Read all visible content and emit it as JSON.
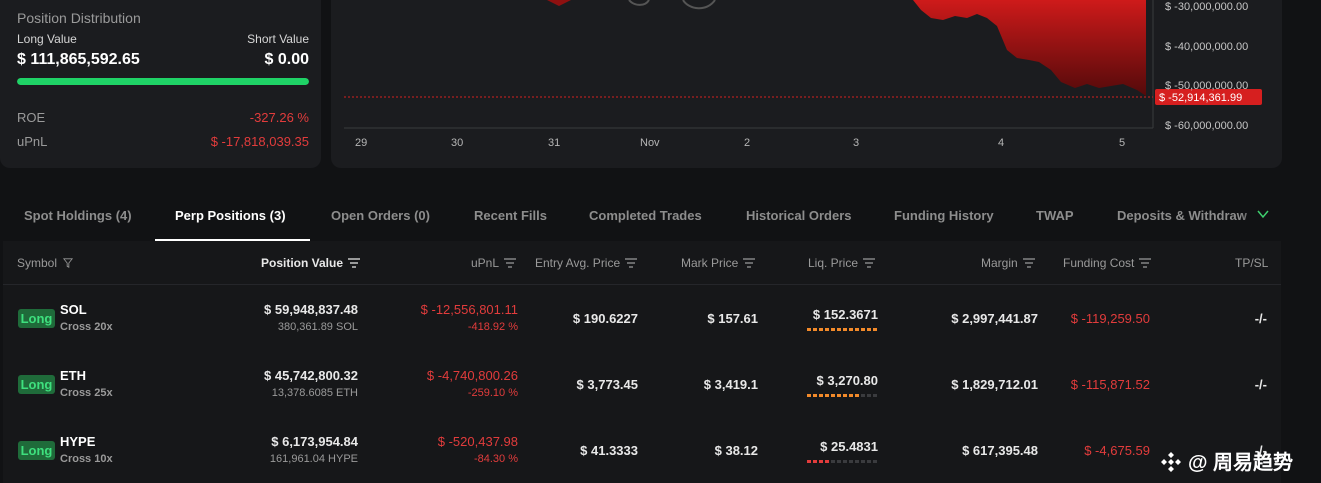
{
  "position_card": {
    "title": "Position Distribution",
    "long_label": "Long Value",
    "short_label": "Short Value",
    "long_value": "$ 111,865,592.65",
    "short_value": "$ 0.00",
    "long_fraction": 1.0,
    "roe_label": "ROE",
    "roe_value": "-327.26 %",
    "upnl_label": "uPnL",
    "upnl_value": "$ -17,818,039.35"
  },
  "chart": {
    "y_ticks": [
      "$ -30,000,000.00",
      "$ -40,000,000.00",
      "$ -50,000,000.00",
      "$ -60,000,000.00"
    ],
    "current_label": "$ -52,914,361.99",
    "x_ticks": [
      "29",
      "30",
      "31",
      "Nov",
      "2",
      "3",
      "4",
      "5"
    ],
    "colors": {
      "area": "#b01414",
      "marker": "#d61f1f"
    }
  },
  "tabs": [
    {
      "label": "Spot Holdings (4)",
      "active": false
    },
    {
      "label": "Perp Positions (3)",
      "active": true
    },
    {
      "label": "Open Orders (0)",
      "active": false
    },
    {
      "label": "Recent Fills",
      "active": false
    },
    {
      "label": "Completed Trades",
      "active": false
    },
    {
      "label": "Historical Orders",
      "active": false
    },
    {
      "label": "Funding History",
      "active": false
    },
    {
      "label": "TWAP",
      "active": false
    },
    {
      "label": "Deposits & Withdraw",
      "active": false
    }
  ],
  "table": {
    "headers": {
      "symbol": "Symbol",
      "position_value": "Position Value",
      "upnl": "uPnL",
      "entry": "Entry Avg. Price",
      "mark": "Mark Price",
      "liq": "Liq. Price",
      "margin": "Margin",
      "funding": "Funding Cost",
      "tpsl": "TP/SL"
    },
    "rows": [
      {
        "side": "Long",
        "symbol": "SOL",
        "cross": "Cross 20x",
        "position_value": "$ 59,948,837.48",
        "position_size": "380,361.89 SOL",
        "upnl": "$ -12,556,801.11",
        "upnl_pct": "-418.92 %",
        "entry": "$ 190.6227",
        "mark": "$ 157.61",
        "liq": "$ 152.3671",
        "margin": "$ 2,997,441.87",
        "funding": "$ -119,259.50",
        "tpsl": "-/-"
      },
      {
        "side": "Long",
        "symbol": "ETH",
        "cross": "Cross 25x",
        "position_value": "$ 45,742,800.32",
        "position_size": "13,378.6085 ETH",
        "upnl": "$ -4,740,800.26",
        "upnl_pct": "-259.10 %",
        "entry": "$ 3,773.45",
        "mark": "$ 3,419.1",
        "liq": "$ 3,270.80",
        "margin": "$ 1,829,712.01",
        "funding": "$ -115,871.52",
        "tpsl": "-/-"
      },
      {
        "side": "Long",
        "symbol": "HYPE",
        "cross": "Cross 10x",
        "position_value": "$ 6,173,954.84",
        "position_size": "161,961.04 HYPE",
        "upnl": "$ -520,437.98",
        "upnl_pct": "-84.30 %",
        "entry": "$ 41.3333",
        "mark": "$ 38.12",
        "liq": "$ 25.4831",
        "margin": "$ 617,395.48",
        "funding": "$ -4,675.59",
        "tpsl": "-/-"
      }
    ]
  },
  "watermark": "@ 周易趋势"
}
